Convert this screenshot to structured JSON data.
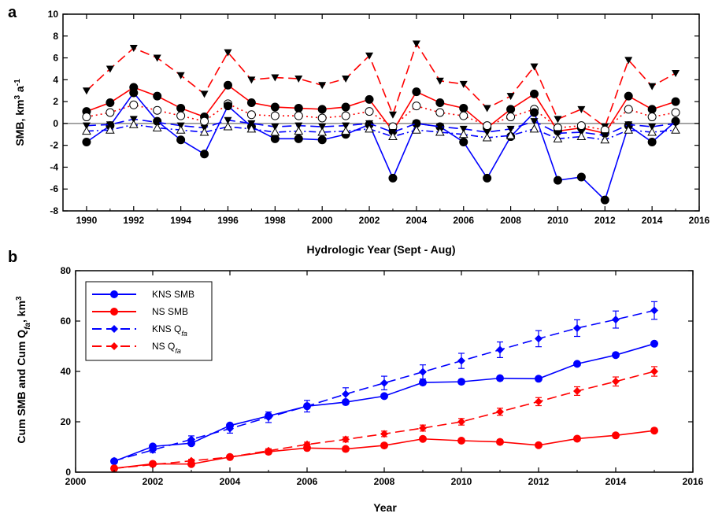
{
  "chart_data": [
    {
      "panel": "a",
      "type": "line",
      "xlabel": "Hydrologic Year (Sept - Aug)",
      "ylabel": "SMB, km³ a⁻¹",
      "xlim": [
        1989,
        2016
      ],
      "ylim": [
        -8,
        10
      ],
      "xticks": [
        1990,
        1992,
        1994,
        1996,
        1998,
        2000,
        2002,
        2004,
        2006,
        2008,
        2010,
        2012,
        2014,
        2016
      ],
      "yticks": [
        -8,
        -6,
        -4,
        -2,
        0,
        2,
        4,
        6,
        8,
        10
      ],
      "zero_line": true,
      "x": [
        1990,
        1991,
        1992,
        1993,
        1994,
        1995,
        1996,
        1997,
        1998,
        1999,
        2000,
        2001,
        2002,
        2003,
        2004,
        2005,
        2006,
        2007,
        2008,
        2009,
        2010,
        2011,
        2012,
        2013,
        2014,
        2015
      ],
      "series": [
        {
          "color": "#ff0000",
          "dash": "dashed",
          "marker": "down-triangle-filled",
          "values": [
            3.0,
            5.0,
            6.9,
            6.0,
            4.4,
            2.7,
            6.5,
            4.0,
            4.2,
            4.1,
            3.5,
            4.1,
            6.2,
            0.8,
            7.3,
            3.9,
            3.6,
            1.4,
            2.5,
            5.2,
            0.4,
            1.3,
            -0.3,
            5.8,
            3.4,
            4.6
          ]
        },
        {
          "color": "#ff0000",
          "dash": "solid",
          "marker": "circle-filled",
          "values": [
            1.1,
            1.9,
            3.3,
            2.5,
            1.4,
            0.6,
            3.5,
            1.9,
            1.5,
            1.4,
            1.3,
            1.5,
            2.2,
            -0.7,
            2.9,
            1.9,
            1.4,
            -0.4,
            1.3,
            2.7,
            -0.7,
            -0.4,
            -0.9,
            2.5,
            1.3,
            2.0
          ]
        },
        {
          "color": "#ff0000",
          "dash": "dotted",
          "marker": "circle-open",
          "values": [
            0.6,
            1.0,
            1.7,
            1.2,
            0.7,
            0.2,
            1.8,
            0.8,
            0.7,
            0.7,
            0.5,
            0.7,
            1.1,
            -0.3,
            1.6,
            1.0,
            0.7,
            -0.2,
            0.6,
            1.3,
            -0.4,
            -0.2,
            -0.6,
            1.3,
            0.6,
            1.0
          ]
        },
        {
          "color": "#0000ff",
          "dash": "solid",
          "marker": "circle-filled",
          "values": [
            -1.7,
            -0.2,
            2.8,
            0.2,
            -1.5,
            -2.8,
            1.6,
            -0.3,
            -1.4,
            -1.4,
            -1.5,
            -1.0,
            -0.1,
            -5.0,
            0.0,
            -0.3,
            -1.7,
            -5.0,
            -1.2,
            1.0,
            -5.2,
            -4.9,
            -7.0,
            -0.2,
            -1.7,
            0.2
          ]
        },
        {
          "color": "#0000ff",
          "dash": "dashed",
          "marker": "down-triangle-filled",
          "values": [
            -0.2,
            -0.1,
            0.4,
            0.1,
            -0.2,
            -0.4,
            0.3,
            0.0,
            -0.3,
            -0.2,
            -0.3,
            -0.2,
            0.0,
            -0.8,
            0.0,
            -0.3,
            -0.5,
            -0.8,
            -0.5,
            0.2,
            -0.9,
            -0.8,
            -1.1,
            -0.1,
            -0.3,
            0.0
          ]
        },
        {
          "color": "#0000ff",
          "dash": "dashdot",
          "marker": "up-triangle-open",
          "values": [
            -0.7,
            -0.6,
            -0.1,
            -0.4,
            -0.6,
            -0.8,
            -0.3,
            -0.5,
            -0.8,
            -0.7,
            -0.8,
            -0.7,
            -0.5,
            -1.2,
            -0.6,
            -0.8,
            -1.0,
            -1.3,
            -1.1,
            -0.5,
            -1.4,
            -1.2,
            -1.5,
            -0.6,
            -0.8,
            -0.6
          ]
        }
      ]
    },
    {
      "panel": "b",
      "type": "line",
      "xlabel": "Year",
      "ylabel": "Cum SMB and Cum Q",
      "ylabel_sub": "fa",
      "ylabel_unit": ", km",
      "ylabel_sup": "3",
      "xlim": [
        2000,
        2016
      ],
      "ylim": [
        0,
        80
      ],
      "xticks": [
        2000,
        2002,
        2004,
        2006,
        2008,
        2010,
        2012,
        2014,
        2016
      ],
      "yticks": [
        0,
        20,
        40,
        60,
        80
      ],
      "x": [
        2001,
        2002,
        2003,
        2004,
        2005,
        2006,
        2007,
        2008,
        2009,
        2010,
        2011,
        2012,
        2013,
        2014,
        2015
      ],
      "series": [
        {
          "name": "KNS SMB",
          "name_sub": "",
          "color": "#0000ff",
          "dash": "solid",
          "marker": "circle",
          "values": [
            4.3,
            10.2,
            11.5,
            18.5,
            22.3,
            26.2,
            27.8,
            30.2,
            35.6,
            35.9,
            37.3,
            37.1,
            43.0,
            46.5,
            51.0
          ],
          "errors": null
        },
        {
          "name": "NS SMB",
          "name_sub": "",
          "color": "#ff0000",
          "dash": "solid",
          "marker": "circle",
          "values": [
            1.5,
            3.3,
            3.2,
            6.0,
            8.1,
            9.6,
            9.2,
            10.6,
            13.2,
            12.5,
            12.0,
            10.7,
            13.3,
            14.6,
            16.5
          ],
          "errors": null
        },
        {
          "name": "KNS Q",
          "name_sub": "fa",
          "color": "#0000ff",
          "dash": "dashed",
          "marker": "diamond",
          "values": [
            4.5,
            8.8,
            13.0,
            17.3,
            21.8,
            26.2,
            31.0,
            35.4,
            39.8,
            44.2,
            48.6,
            53.0,
            57.2,
            60.6,
            64.2
          ],
          "errors": [
            0.6,
            1.0,
            1.4,
            1.8,
            2.1,
            2.3,
            2.5,
            2.7,
            2.8,
            3.0,
            3.1,
            3.2,
            3.3,
            3.4,
            3.5
          ]
        },
        {
          "name": "NS Q",
          "name_sub": "fa",
          "color": "#ff0000",
          "dash": "dashed",
          "marker": "diamond",
          "values": [
            1.5,
            3.0,
            4.5,
            6.0,
            8.5,
            11.0,
            13.0,
            15.2,
            17.5,
            20.0,
            24.0,
            28.0,
            32.2,
            36.0,
            40.0
          ],
          "errors": [
            0.3,
            0.5,
            0.6,
            0.7,
            0.8,
            0.9,
            1.0,
            1.1,
            1.2,
            1.3,
            1.4,
            1.6,
            1.7,
            1.8,
            1.9
          ]
        }
      ]
    }
  ]
}
